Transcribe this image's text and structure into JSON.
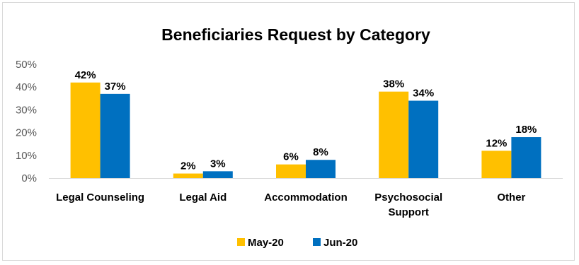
{
  "chart_data": {
    "type": "bar",
    "title": "Beneficiaries  Request by Category",
    "categories": [
      [
        "Legal Counseling"
      ],
      [
        "Legal Aid"
      ],
      [
        "Accommodation"
      ],
      [
        "Psychosocial",
        "Support"
      ],
      [
        "Other"
      ]
    ],
    "series": [
      {
        "name": "May-20",
        "color": "#FFC000",
        "values": [
          42,
          2,
          6,
          38,
          12
        ],
        "labels": [
          "42%",
          "2%",
          "6%",
          "38%",
          "12%"
        ]
      },
      {
        "name": "Jun-20",
        "color": "#0070C0",
        "values": [
          37,
          3,
          8,
          34,
          18
        ],
        "labels": [
          "37%",
          "3%",
          "8%",
          "34%",
          "18%"
        ]
      }
    ],
    "yticks": [
      0,
      10,
      20,
      30,
      40,
      50
    ],
    "ytick_labels": [
      "0%",
      "10%",
      "20%",
      "30%",
      "40%",
      "50%"
    ],
    "ylim": [
      0,
      50
    ],
    "xlabel": "",
    "ylabel": "",
    "grid": false,
    "legend_position": "bottom"
  }
}
